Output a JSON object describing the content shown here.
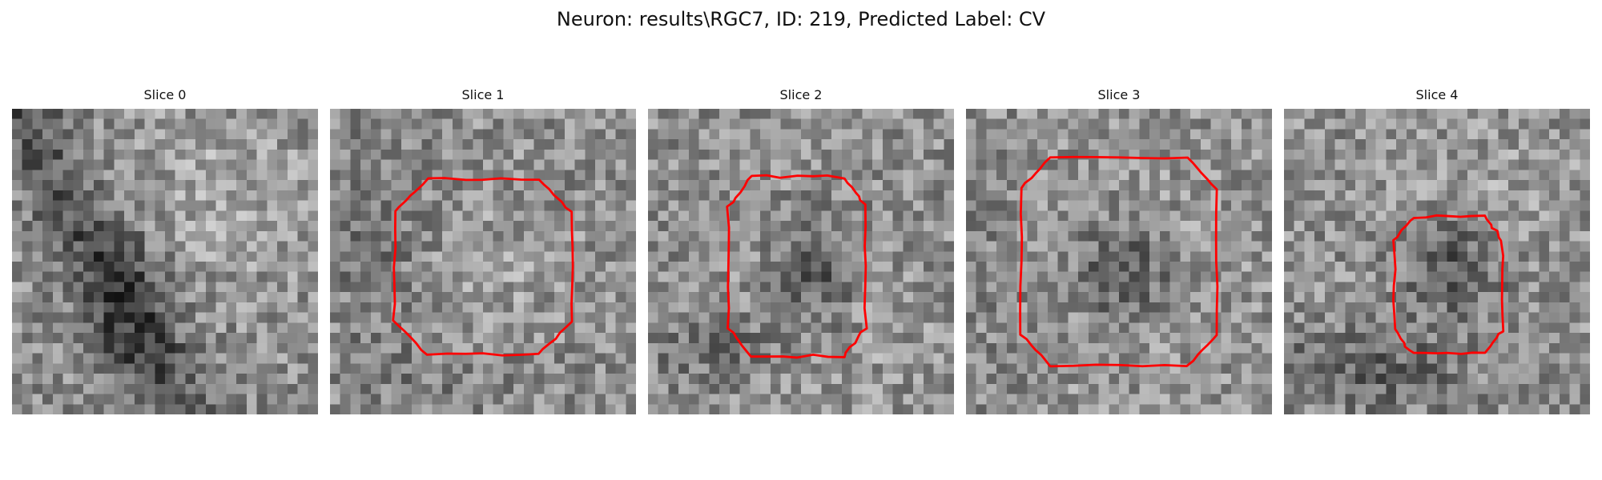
{
  "figure": {
    "title": "Neuron: results\\RGC7, ID: 219, Predicted Label: CV"
  },
  "panels": [
    {
      "title": "Slice 0"
    },
    {
      "title": "Slice 1"
    },
    {
      "title": "Slice 2"
    },
    {
      "title": "Slice 3"
    },
    {
      "title": "Slice 4"
    }
  ],
  "colors": {
    "background": "#ffffff",
    "contour": "#ff0000",
    "grayscale_min": "#000000",
    "grayscale_max": "#ffffff"
  }
}
